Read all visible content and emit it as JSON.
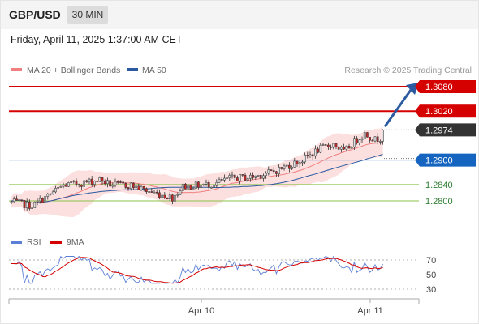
{
  "header": {
    "pair": "GBP/USD",
    "timeframe": "30 MIN",
    "datetime": "Friday, April 11, 2025 1:37:00 AM CET"
  },
  "legend": {
    "ma20_label": "MA 20 + Bollinger Bands",
    "ma50_label": "MA 50",
    "copyright": "Research © 2025 Trading Central"
  },
  "rsi_legend": {
    "rsi_label": "RSI",
    "ma9_label": "9MA"
  },
  "colors": {
    "up": "#e0e0e0",
    "down": "#c62828",
    "ma20": "#f08080",
    "bands": "#fbd4d4",
    "ma50": "#2c5aa0",
    "resistance": "#d50000",
    "support_blue": "#1565c0",
    "support_green": "#8bc34a",
    "last_price": "#333333",
    "rsi": "#5b7fd6",
    "rsi_ma": "#d50000"
  },
  "chart_data": [
    {
      "type": "candlestick",
      "x_labels": [
        "Apr 10",
        "Apr 11"
      ],
      "ylim": [
        1.2735,
        1.3095
      ],
      "levels": [
        {
          "label": "1.3080",
          "value": 1.308,
          "kind": "resistance"
        },
        {
          "label": "1.3020",
          "value": 1.302,
          "kind": "resistance"
        },
        {
          "label": "1.2974",
          "value": 1.2974,
          "kind": "last"
        },
        {
          "label": "1.2900",
          "value": 1.29,
          "kind": "support_blue"
        },
        {
          "label": "1.2840",
          "value": 1.284,
          "kind": "support_green"
        },
        {
          "label": "1.2800",
          "value": 1.28,
          "kind": "support_green"
        }
      ],
      "arrow": {
        "from": 1.2982,
        "to": 1.3082
      }
    },
    {
      "type": "line",
      "name": "RSI",
      "ylim": [
        20,
        80
      ],
      "ticks": [
        70,
        50,
        30
      ]
    }
  ]
}
